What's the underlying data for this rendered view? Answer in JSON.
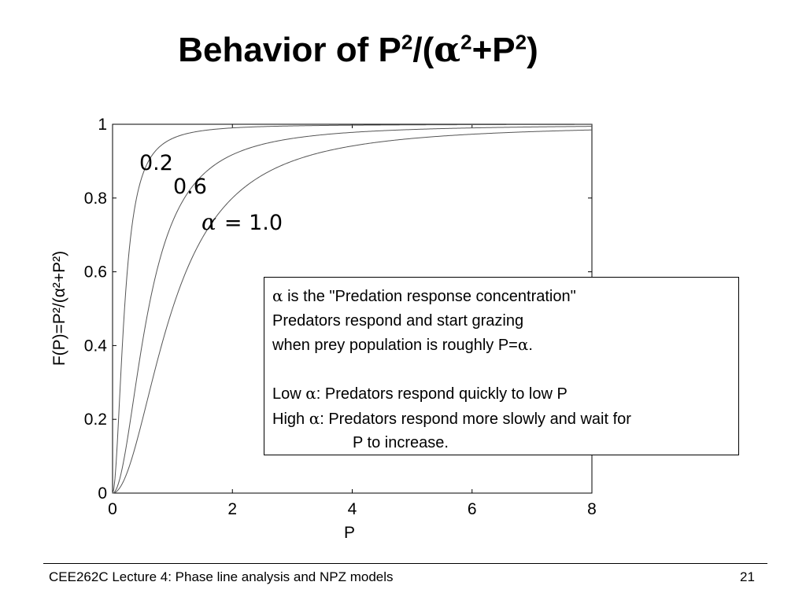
{
  "slide": {
    "title_prefix": "Behavior of P",
    "title_sup1": "2",
    "title_mid": "/(",
    "title_alpha": "α",
    "title_sup2": "2",
    "title_plus": "+P",
    "title_sup3": "2",
    "title_close": ")"
  },
  "chart_data": {
    "type": "line",
    "xlabel": "P",
    "ylabel": "F(P)=P²/(α²+P²)",
    "xlim": [
      0,
      8
    ],
    "ylim": [
      0,
      1
    ],
    "xticks": [
      "0",
      "2",
      "4",
      "6",
      "8"
    ],
    "yticks": [
      "0",
      "0.2",
      "0.4",
      "0.6",
      "0.8",
      "1"
    ],
    "grid": false,
    "function": "P^2/(alpha^2+P^2)",
    "series": [
      {
        "alpha": 0.2,
        "label": "0.2"
      },
      {
        "alpha": 0.6,
        "label": "0.6"
      },
      {
        "alpha": 1.0,
        "label_prefix": "α",
        "label": "= 1.0"
      }
    ]
  },
  "info_box": {
    "line1_alpha": "α",
    "line1": " is the \"Predation response concentration\"",
    "line2": "Predators respond and start grazing",
    "line3a": "when prey population is roughly P=",
    "line3_alpha": "α",
    "line3b": ".",
    "line4a": "Low ",
    "line4_alpha": "α",
    "line4b": ": Predators respond quickly to low P",
    "line5a": "High ",
    "line5_alpha": "α",
    "line5b": ": Predators respond more slowly and wait for",
    "line6": "P to increase."
  },
  "footer": {
    "text": "CEE262C Lecture 4: Phase line analysis and NPZ models",
    "page_number": "21"
  }
}
